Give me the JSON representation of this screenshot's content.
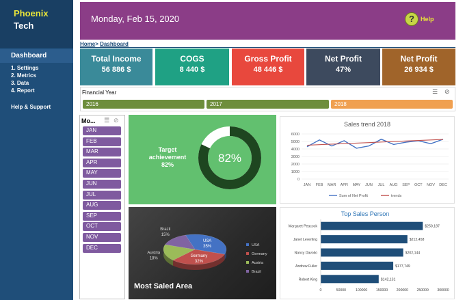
{
  "brand": {
    "line1": "Phoenix",
    "line2": "Tech"
  },
  "nav": {
    "active": "Dashboard",
    "items": [
      "1. Settings",
      "2. Metrics",
      "3. Data",
      "4. Report"
    ],
    "help": "Help & Support"
  },
  "header": {
    "date": "Monday, Feb 15, 2020",
    "help_glyph": "?",
    "help_label": "Help"
  },
  "breadcrumb": {
    "home": "Home",
    "sep": ">",
    "current": "Dashboard"
  },
  "kpis": [
    {
      "label": "Total Income",
      "value": "56 886 $",
      "color": "#3a8a99"
    },
    {
      "label": "COGS",
      "value": "8 440 $",
      "color": "#1fa184"
    },
    {
      "label": "Gross Profit",
      "value": "48 446 $",
      "color": "#e8483d"
    },
    {
      "label": "Net Profit",
      "value": "47%",
      "color": "#3d4a5e"
    },
    {
      "label": "Net Profit",
      "value": "26 934 $",
      "color": "#a0642a"
    }
  ],
  "slicer": {
    "title": "Financial Year",
    "years": [
      {
        "label": "2016",
        "color": "#6e8e3c"
      },
      {
        "label": "2017",
        "color": "#6e8e3c"
      },
      {
        "label": "2018",
        "color": "#f0a050"
      }
    ]
  },
  "months": {
    "title": "Mo...",
    "items": [
      "JAN",
      "FEB",
      "MAR",
      "APR",
      "MAY",
      "JUN",
      "JUL",
      "AUG",
      "SEP",
      "OCT",
      "NOV",
      "DEC"
    ]
  },
  "target": {
    "label_line1": "Target",
    "label_line2": "achievement",
    "label_value": "82%",
    "value": "82%",
    "fraction": 0.82
  },
  "chart_data": [
    {
      "type": "line",
      "title": "Sales trend 2018",
      "categories": [
        "JAN",
        "FEB",
        "MAR",
        "APR",
        "MAY",
        "JUN",
        "JUL",
        "AUG",
        "SEP",
        "OCT",
        "NOV",
        "DEC"
      ],
      "series": [
        {
          "name": "Sum of Net Profit",
          "values": [
            4300,
            5200,
            4400,
            5100,
            4100,
            4400,
            5300,
            4600,
            4900,
            5100,
            4700,
            5300
          ],
          "color": "#4472c4"
        },
        {
          "name": "trends",
          "values": [
            4500,
            4570,
            4640,
            4710,
            4780,
            4850,
            4920,
            4990,
            5060,
            5130,
            5200,
            5270
          ],
          "color": "#c0504d"
        }
      ],
      "yticks": [
        "0",
        "1000",
        "2000",
        "3000",
        "4000",
        "5000",
        "6000"
      ],
      "ylim": [
        0,
        6000
      ],
      "legend": "bottom"
    },
    {
      "type": "pie",
      "title": "Most Saled Area",
      "slices": [
        {
          "label": "USA",
          "value": 35,
          "display": "35%",
          "color": "#4472c4"
        },
        {
          "label": "Germany",
          "value": 32,
          "display": "32%",
          "color": "#c0504d"
        },
        {
          "label": "Austria",
          "value": 18,
          "display": "18%",
          "color": "#9bbb59"
        },
        {
          "label": "Brazil",
          "value": 15,
          "display": "15%",
          "color": "#8064a2"
        }
      ],
      "legend": "right"
    },
    {
      "type": "bar",
      "title": "Top Sales Person",
      "categories": [
        "Margaret Peacock",
        "Janet Leverling",
        "Nancy Davolio",
        "Andrew Fuller",
        "Robert King"
      ],
      "values": [
        250187,
        212458,
        202144,
        177749,
        142131
      ],
      "labels": [
        "$250,187",
        "$212,458",
        "$202,144",
        "$177,749",
        "$142,131"
      ],
      "xticks": [
        "0",
        "50000",
        "100000",
        "150000",
        "200000",
        "250000",
        "300000"
      ],
      "xlim": [
        0,
        300000
      ],
      "color": "#1f4e79"
    }
  ]
}
